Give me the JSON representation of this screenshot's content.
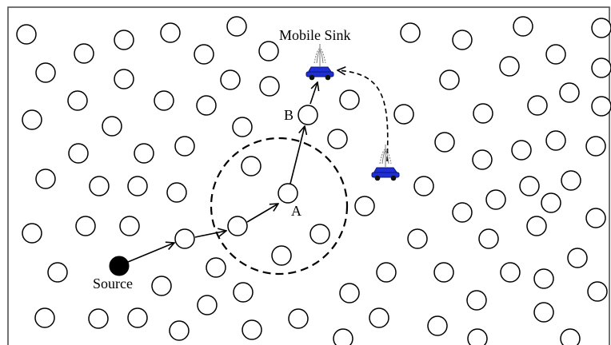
{
  "labels": {
    "mobile_sink": "Mobile Sink",
    "source": "Source",
    "node_a": "A",
    "node_b": "B"
  },
  "colors": {
    "stroke": "#000000",
    "background": "#ffffff",
    "sink_body": "#1f2fd6",
    "source_fill": "#000000"
  },
  "icons": [
    "sensor-node-icon",
    "source-node-icon",
    "mobile-sink-vehicle-icon",
    "antenna-icon"
  ]
}
